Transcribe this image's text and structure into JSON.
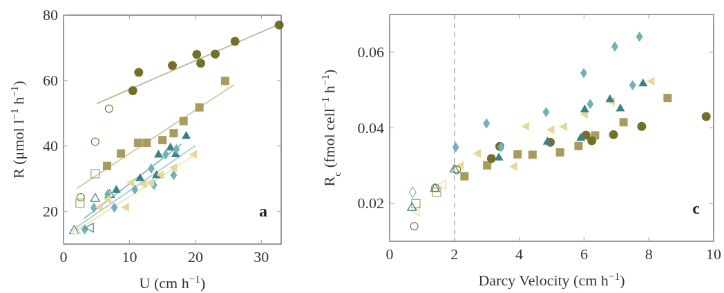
{
  "chart_data": [
    {
      "type": "scatter",
      "xlabel": "U (cm h$^{−1}$)",
      "ylabel": "R (μmol l$^{−1}$ h$^{−1}$)",
      "xlim": [
        0,
        33
      ],
      "ylim": [
        10,
        80
      ],
      "xticks": [
        0,
        10,
        20,
        30
      ],
      "yticks": [
        20,
        40,
        60,
        80
      ],
      "grid": false,
      "annotations": [
        "a"
      ],
      "series": [
        {
          "type": "line",
          "color": "#bfbf9a",
          "x": [
            5,
            33
          ],
          "values": [
            52.9,
            77.5
          ]
        },
        {
          "type": "line",
          "color": "#d4cda9",
          "x": [
            2,
            25.9
          ],
          "values": [
            27,
            58.8
          ]
        },
        {
          "type": "line",
          "color": "#9bbcc0",
          "x": [
            3.1,
            17.9
          ],
          "values": [
            17.8,
            40.6
          ]
        },
        {
          "type": "line",
          "color": "#a8d2dc",
          "x": [
            1.7,
            20
          ],
          "values": [
            14.8,
            40.1
          ]
        },
        {
          "type": "line",
          "color": "#efe6ba",
          "x": [
            1.9,
            20
          ],
          "values": [
            14.1,
            37.3
          ]
        },
        {
          "marker": "circle",
          "color": "#757029",
          "x": [
            10.5,
            11.4,
            16.5,
            20.2,
            20.8,
            23,
            26,
            32.7
          ],
          "values": [
            56.9,
            62.5,
            64.6,
            68,
            65.3,
            68.1,
            72,
            77
          ]
        },
        {
          "marker": "circle-open",
          "color": "#757029",
          "x": [
            6.9,
            4.8,
            2.6
          ],
          "values": [
            51.4,
            41.3,
            24.3
          ]
        },
        {
          "marker": "square",
          "color": "#a89b5e",
          "x": [
            24.5,
            20.6,
            18.2,
            16.7,
            15,
            12.6,
            11.3,
            8.7,
            6.6
          ],
          "values": [
            59.9,
            51.8,
            47.6,
            43.9,
            41.8,
            41,
            41,
            37.7,
            33.9
          ]
        },
        {
          "marker": "square-open",
          "color": "#a89b5e",
          "x": [
            4.8,
            2.5
          ],
          "values": [
            31.5,
            22.5
          ]
        },
        {
          "marker": "triangle",
          "color": "#3d8087",
          "x": [
            18.6,
            16.2,
            17,
            14.4,
            14.1,
            11.6,
            8
          ],
          "values": [
            43.2,
            39.7,
            37.6,
            37.5,
            31.2,
            30.3,
            26.7
          ]
        },
        {
          "marker": "triangle-open",
          "color": "#3d8087",
          "x": [
            4.8,
            7,
            1.6
          ],
          "values": [
            24.1,
            25.3,
            14.3
          ]
        },
        {
          "marker": "diamond",
          "color": "#72b2b6",
          "x": [
            17.1,
            15.5,
            13.3,
            16.7,
            13.7,
            10.8,
            6.7,
            4.6,
            7.7,
            3.2
          ],
          "values": [
            39,
            37.4,
            33.1,
            31.1,
            28.1,
            26.7,
            25.2,
            21.1,
            21.1,
            14.5
          ]
        },
        {
          "marker": "triangle-left",
          "color": "#e6d898",
          "x": [
            19.7,
            16.7,
            14.7,
            13.2,
            12.1,
            10.2,
            6.7,
            5.4,
            9.4
          ],
          "values": [
            37.4,
            33.4,
            31.2,
            28.8,
            28.3,
            28.8,
            23.7,
            21.3,
            21.3
          ]
        },
        {
          "marker": "triangle-left-open",
          "color": "#3d8087",
          "x": [
            4
          ],
          "values": [
            15
          ]
        },
        {
          "marker": "triangle-open",
          "color": "#e6d898",
          "x": [
            1.9
          ],
          "values": [
            14.3
          ]
        }
      ]
    },
    {
      "type": "scatter",
      "xlabel": "Darcy Velocity (cm h$^{−1}$)",
      "ylabel": "R$_{c}$ (fmol cell$^{−1}$ h$^{−1}$)",
      "xlim": [
        0,
        10
      ],
      "ylim": [
        0.01,
        0.07
      ],
      "xticks": [
        0,
        2,
        4,
        6,
        8,
        10
      ],
      "yticks": [
        0.02,
        0.04,
        0.06
      ],
      "grid": false,
      "annotations": [
        "c"
      ],
      "ref_lines": [
        {
          "axis": "x",
          "value": 2,
          "color": "#999999",
          "line_style": "dashed"
        }
      ],
      "series": [
        {
          "marker": "diamond-open",
          "color": "#72b2b6",
          "x": [
            0.71
          ],
          "values": [
            0.023
          ]
        },
        {
          "marker": "triangle-left",
          "color": "#e6d898",
          "x": [
            8.07,
            6.84,
            6.01,
            4.2,
            4.98,
            5.37,
            2.71,
            3.83,
            2.18
          ],
          "values": [
            0.0523,
            0.047,
            0.0436,
            0.0404,
            0.0395,
            0.0403,
            0.0332,
            0.0298,
            0.03
          ]
        },
        {
          "marker": "triangle-left-open",
          "color": "#e6d898",
          "x": [
            1.63,
            0.81
          ],
          "values": [
            0.025,
            0.018
          ]
        },
        {
          "marker": "square",
          "color": "#a89b5e",
          "x": [
            8.58,
            7.22,
            6.34,
            5.83,
            5.26,
            4.41,
            3.95,
            3.01,
            2.31
          ],
          "values": [
            0.0479,
            0.0415,
            0.038,
            0.0352,
            0.0335,
            0.0329,
            0.033,
            0.0301,
            0.0272
          ]
        },
        {
          "marker": "square-open",
          "color": "#a89b5e",
          "x": [
            1.45,
            0.81
          ],
          "values": [
            0.023,
            0.02
          ]
        },
        {
          "marker": "circle",
          "color": "#757029",
          "x": [
            9.77,
            7.78,
            6.91,
            6.06,
            6.24,
            4.96,
            3.4,
            3.14
          ],
          "values": [
            0.043,
            0.0404,
            0.0382,
            0.0381,
            0.0366,
            0.0362,
            0.0351,
            0.0319
          ]
        },
        {
          "marker": "circle-open",
          "color": "#757029",
          "x": [
            2.07,
            1.41,
            0.76
          ],
          "values": [
            0.0289,
            0.0241,
            0.014
          ]
        },
        {
          "marker": "triangle",
          "color": "#3d8087",
          "x": [
            7.82,
            6.8,
            7.12,
            6.02,
            5.9,
            4.87,
            3.37
          ],
          "values": [
            0.0519,
            0.0477,
            0.0453,
            0.045,
            0.0375,
            0.0365,
            0.0323
          ]
        },
        {
          "marker": "triangle-open",
          "color": "#3d8087",
          "x": [
            2,
            1.4,
            0.69
          ],
          "values": [
            0.0292,
            0.0241,
            0.0191
          ]
        },
        {
          "marker": "diamond",
          "color": "#72b2b6",
          "x": [
            7.71,
            6.95,
            5.99,
            7.5,
            6.19,
            4.83,
            2.99,
            2.04,
            3.44
          ],
          "values": [
            0.0641,
            0.0615,
            0.0545,
            0.0513,
            0.0463,
            0.0442,
            0.0412,
            0.0349,
            0.0349
          ]
        }
      ]
    }
  ]
}
